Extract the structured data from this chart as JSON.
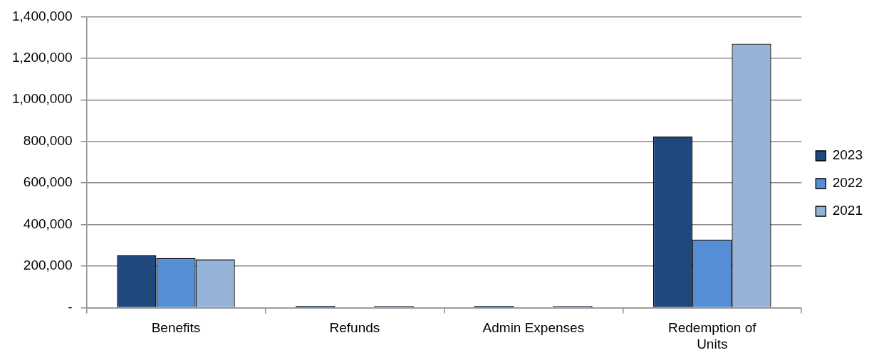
{
  "chart_data": {
    "type": "bar",
    "categories": [
      "Benefits",
      "Refunds",
      "Admin Expenses",
      "Redemption of Units"
    ],
    "series": [
      {
        "name": "2023",
        "color": "#1f497d",
        "values": [
          252000,
          8000,
          8000,
          824000
        ]
      },
      {
        "name": "2022",
        "color": "#558ed5",
        "values": [
          238000,
          null,
          null,
          327000
        ]
      },
      {
        "name": "2021",
        "color": "#95b3d7",
        "values": [
          232000,
          8000,
          8000,
          1270000
        ]
      }
    ],
    "ylim": [
      0,
      1400000
    ],
    "yticks": [
      {
        "value": 0,
        "label": "-"
      },
      {
        "value": 200000,
        "label": "200,000"
      },
      {
        "value": 400000,
        "label": "400,000"
      },
      {
        "value": 600000,
        "label": "600,000"
      },
      {
        "value": 800000,
        "label": "800,000"
      },
      {
        "value": 1000000,
        "label": "1,000,000"
      },
      {
        "value": 1200000,
        "label": "1,200,000"
      },
      {
        "value": 1400000,
        "label": "1,400,000"
      }
    ],
    "grid": "y",
    "legend": "right"
  }
}
